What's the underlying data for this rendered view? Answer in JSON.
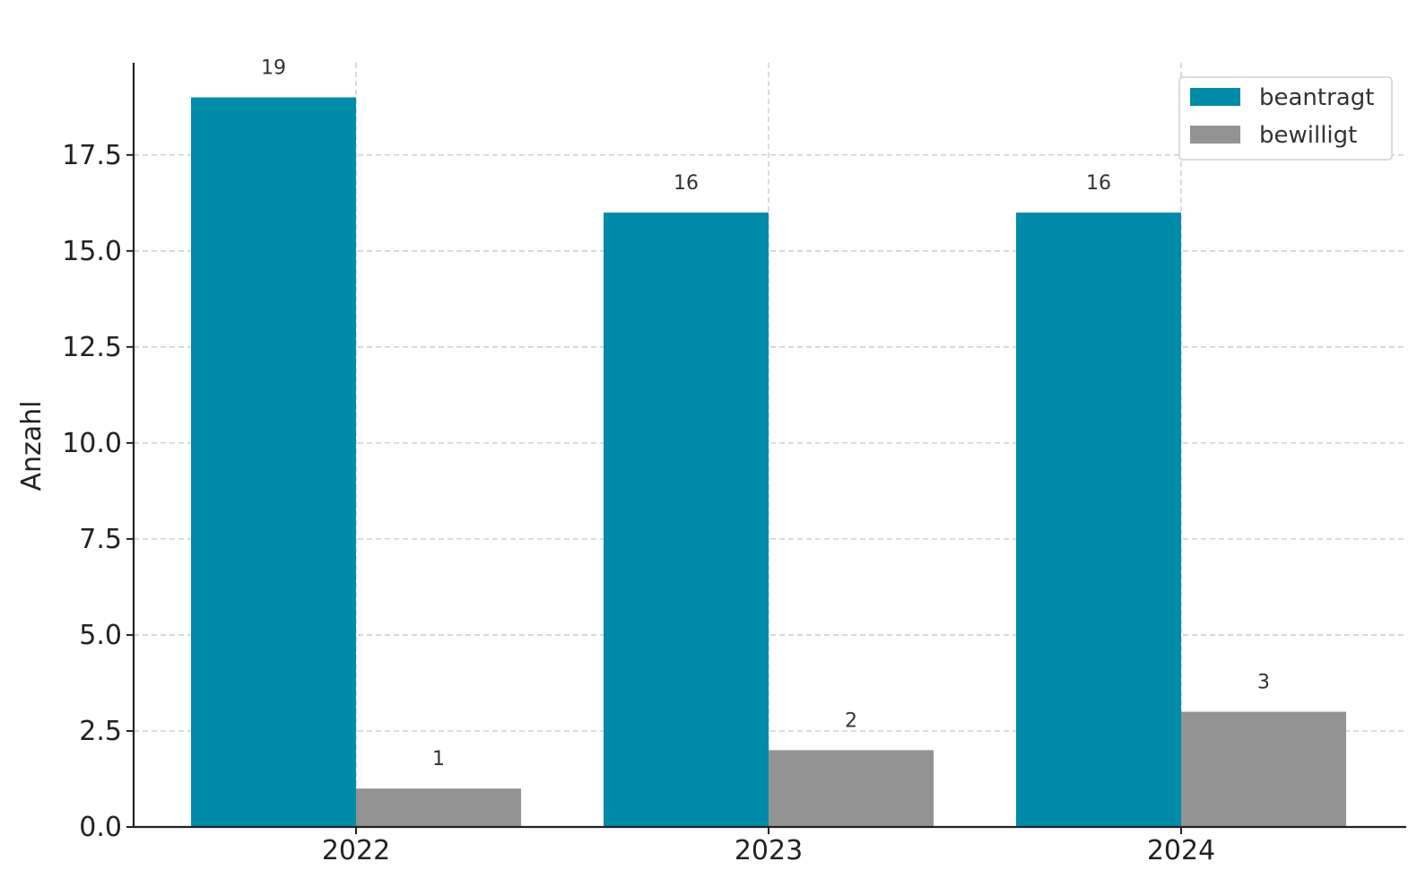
{
  "chart_data": {
    "type": "bar",
    "categories": [
      "2022",
      "2023",
      "2024"
    ],
    "series": [
      {
        "name": "beantragt",
        "values": [
          19,
          16,
          16
        ],
        "color": "#008ba9"
      },
      {
        "name": "bewilligt",
        "values": [
          1,
          2,
          3
        ],
        "color": "#939393"
      }
    ],
    "title": "",
    "xlabel": "",
    "ylabel": "Anzahl",
    "ylim": [
      0,
      19.9
    ],
    "yticks": [
      "0.0",
      "2.5",
      "5.0",
      "7.5",
      "10.0",
      "12.5",
      "15.0",
      "17.5"
    ],
    "ytick_values": [
      0,
      2.5,
      5,
      7.5,
      10,
      12.5,
      15,
      17.5
    ],
    "grid": true,
    "legend_position": "top-right"
  }
}
